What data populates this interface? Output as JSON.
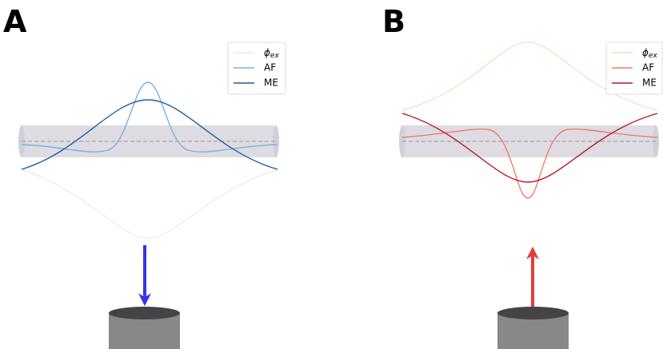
{
  "panels": [
    {
      "label": "A",
      "legend": {
        "phi": {
          "symbol": "ϕ",
          "subscript": "ex"
        },
        "af": "AF",
        "me": "ME"
      }
    },
    {
      "label": "B",
      "legend": {
        "phi": {
          "symbol": "ϕ",
          "subscript": "ex"
        },
        "af": "AF",
        "me": "ME"
      }
    }
  ]
}
